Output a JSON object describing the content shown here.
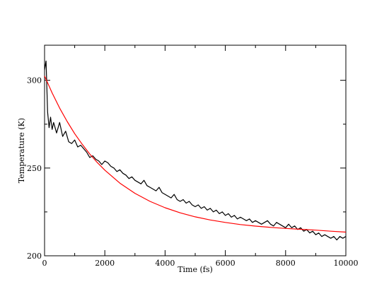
{
  "chart_data": {
    "type": "line",
    "title": "",
    "xlabel": "Time (fs)",
    "ylabel": "Temperature (K)",
    "xlim": [
      0,
      10000
    ],
    "ylim": [
      200,
      320
    ],
    "x_ticks": [
      0,
      2000,
      4000,
      6000,
      8000,
      10000
    ],
    "y_ticks": [
      200,
      250,
      300
    ],
    "grid": false,
    "legend": "none",
    "series": [
      {
        "color": "#000000",
        "x": [
          0,
          50,
          100,
          150,
          200,
          250,
          300,
          400,
          500,
          600,
          700,
          800,
          900,
          1000,
          1100,
          1200,
          1300,
          1400,
          1500,
          1600,
          1700,
          1800,
          1900,
          2000,
          2100,
          2200,
          2300,
          2400,
          2500,
          2600,
          2700,
          2800,
          2900,
          3000,
          3100,
          3200,
          3300,
          3400,
          3500,
          3600,
          3700,
          3800,
          3900,
          4000,
          4100,
          4200,
          4300,
          4400,
          4500,
          4600,
          4700,
          4800,
          4900,
          5000,
          5100,
          5200,
          5300,
          5400,
          5500,
          5600,
          5700,
          5800,
          5900,
          6000,
          6100,
          6200,
          6300,
          6400,
          6500,
          6600,
          6700,
          6800,
          6900,
          7000,
          7100,
          7200,
          7300,
          7400,
          7500,
          7600,
          7700,
          7800,
          7900,
          8000,
          8100,
          8200,
          8300,
          8400,
          8500,
          8600,
          8700,
          8800,
          8900,
          9000,
          9100,
          9200,
          9300,
          9400,
          9500,
          9600,
          9700,
          9800,
          9900,
          10000
        ],
        "values": [
          306,
          311,
          282,
          273,
          279,
          272,
          276,
          270,
          276,
          268,
          271,
          265,
          264,
          266,
          262,
          263,
          261,
          259,
          256,
          257,
          255,
          254,
          252,
          254,
          253,
          251,
          250,
          248,
          249,
          247,
          246,
          244,
          245,
          243,
          242,
          241,
          243,
          240,
          239,
          238,
          237,
          239,
          236,
          235,
          234,
          233,
          235,
          232,
          231,
          232,
          230,
          231,
          229,
          228,
          229,
          227,
          228,
          226,
          227,
          225,
          226,
          224,
          225,
          223,
          224,
          222,
          223,
          221,
          222,
          221,
          220,
          221,
          219,
          220,
          219,
          218,
          219,
          220,
          218,
          217,
          219,
          218,
          217,
          216,
          218,
          216,
          217,
          215,
          216,
          214,
          215,
          213,
          214,
          212,
          213,
          211,
          212,
          211,
          210,
          211,
          209,
          211,
          210,
          211
        ]
      },
      {
        "color": "#ff0000",
        "x": [
          0,
          250,
          500,
          750,
          1000,
          1250,
          1500,
          1750,
          2000,
          2500,
          3000,
          3500,
          4000,
          4500,
          5000,
          5500,
          6000,
          6500,
          7000,
          7500,
          8000,
          8500,
          9000,
          9500,
          10000
        ],
        "values": [
          302.5,
          292.8,
          284.2,
          276.5,
          269.6,
          263.5,
          258.0,
          253.1,
          248.8,
          241.4,
          235.6,
          231.0,
          227.4,
          224.5,
          222.2,
          220.4,
          219.0,
          217.8,
          216.9,
          216.2,
          215.6,
          215.1,
          214.6,
          214.0,
          213.5
        ]
      }
    ]
  }
}
